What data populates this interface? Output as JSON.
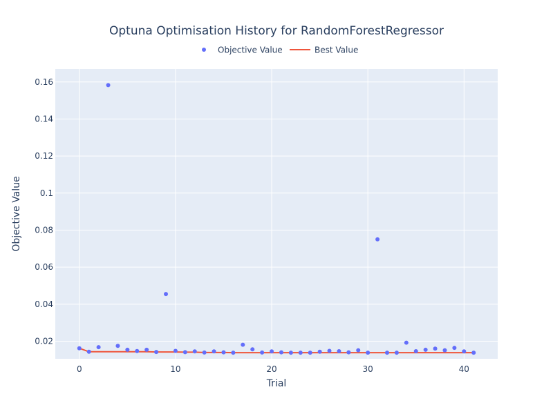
{
  "chart_data": {
    "type": "scatter",
    "title": "Optuna Optimisation History for RandomForestRegressor",
    "xlabel": "Trial",
    "ylabel": "Objective Value",
    "xlim": [
      -2.5,
      43.5
    ],
    "ylim": [
      0.0105,
      0.167
    ],
    "xticks": [
      0,
      10,
      20,
      30,
      40
    ],
    "xtick_labels": [
      "0",
      "10",
      "20",
      "30",
      "40"
    ],
    "yticks": [
      0.02,
      0.04,
      0.06,
      0.08,
      0.1,
      0.12,
      0.14,
      0.16
    ],
    "ytick_labels": [
      "0.02",
      "0.04",
      "0.06",
      "0.08",
      "0.1",
      "0.12",
      "0.14",
      "0.16"
    ],
    "grid": true,
    "legend_position": "top-center",
    "series": [
      {
        "name": "Objective Value",
        "mode": "markers",
        "color": "#636efa",
        "x": [
          0,
          1,
          2,
          3,
          4,
          5,
          6,
          7,
          8,
          9,
          10,
          11,
          12,
          13,
          14,
          15,
          16,
          17,
          18,
          19,
          20,
          21,
          22,
          23,
          24,
          25,
          26,
          27,
          28,
          29,
          30,
          31,
          32,
          33,
          34,
          35,
          36,
          37,
          38,
          39,
          40,
          41
        ],
        "y": [
          0.0162,
          0.0143,
          0.0168,
          0.1583,
          0.0175,
          0.0154,
          0.0147,
          0.0154,
          0.0142,
          0.0455,
          0.0148,
          0.0141,
          0.0145,
          0.0139,
          0.0145,
          0.014,
          0.0138,
          0.0181,
          0.0156,
          0.0139,
          0.0145,
          0.014,
          0.0138,
          0.0138,
          0.0138,
          0.0143,
          0.0148,
          0.0146,
          0.014,
          0.0151,
          0.0138,
          0.075,
          0.0138,
          0.0138,
          0.0192,
          0.0146,
          0.0154,
          0.016,
          0.0151,
          0.0164,
          0.0145,
          0.0138
        ]
      },
      {
        "name": "Best Value",
        "mode": "lines",
        "color": "#ef553b",
        "x": [
          0,
          1,
          2,
          3,
          4,
          5,
          6,
          7,
          8,
          9,
          10,
          11,
          12,
          13,
          14,
          15,
          16,
          17,
          18,
          19,
          20,
          21,
          22,
          23,
          24,
          25,
          26,
          27,
          28,
          29,
          30,
          31,
          32,
          33,
          34,
          35,
          36,
          37,
          38,
          39,
          40,
          41
        ],
        "y": [
          0.0162,
          0.0143,
          0.0143,
          0.0143,
          0.0143,
          0.0143,
          0.0143,
          0.0143,
          0.0142,
          0.0142,
          0.0142,
          0.0141,
          0.0141,
          0.0139,
          0.0139,
          0.0139,
          0.0138,
          0.0138,
          0.0138,
          0.0138,
          0.0138,
          0.0138,
          0.0138,
          0.0138,
          0.0138,
          0.0138,
          0.0138,
          0.0138,
          0.0138,
          0.0138,
          0.0138,
          0.0138,
          0.0138,
          0.0138,
          0.0138,
          0.0138,
          0.0138,
          0.0138,
          0.0138,
          0.0138,
          0.0138,
          0.0138
        ]
      }
    ]
  }
}
